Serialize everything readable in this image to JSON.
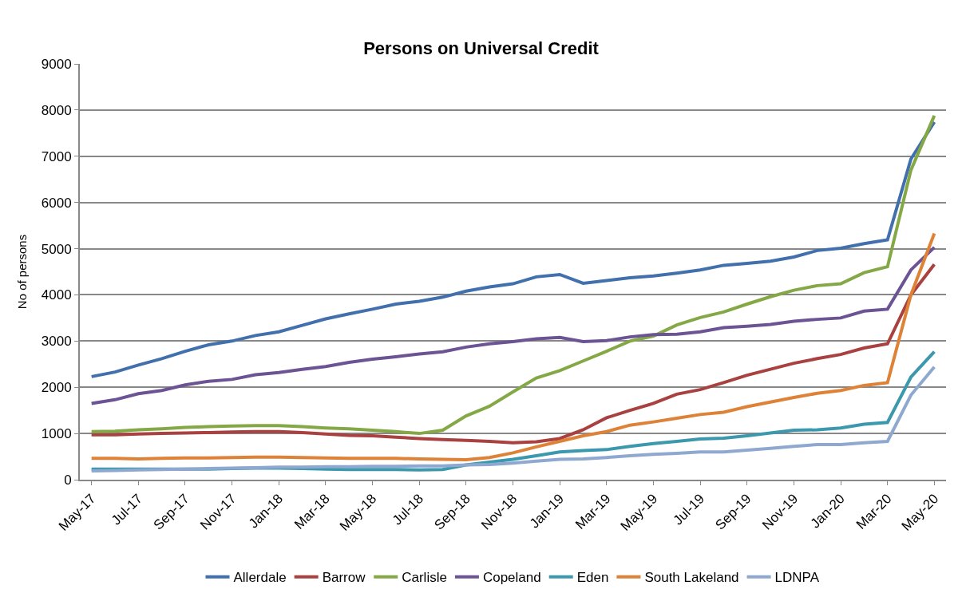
{
  "chart_data": {
    "type": "line",
    "title": "Persons on Universal Credit",
    "ylabel": "No of persons",
    "categories": [
      "May-17",
      null,
      "Jul-17",
      null,
      "Sep-17",
      null,
      "Nov-17",
      null,
      "Jan-18",
      null,
      "Mar-18",
      null,
      "May-18",
      null,
      "Jul-18",
      null,
      "Sep-18",
      null,
      "Nov-18",
      null,
      "Jan-19",
      null,
      "Mar-19",
      null,
      "May-19",
      null,
      "Jul-19",
      null,
      "Sep-19",
      null,
      "Nov-19",
      null,
      "Jan-20",
      null,
      "Mar-20",
      null,
      "May-20"
    ],
    "ylim": [
      0,
      9000
    ],
    "yticks": [
      0,
      1000,
      2000,
      3000,
      4000,
      5000,
      6000,
      7000,
      8000,
      9000
    ],
    "grid": "y",
    "legend": "bottom",
    "marker": "none",
    "line_style": "solid",
    "series": [
      {
        "name": "Allerdale",
        "color": "#4170ad",
        "values": [
          2230,
          2330,
          2480,
          2620,
          2780,
          2920,
          3000,
          3120,
          3200,
          3340,
          3480,
          3590,
          3690,
          3800,
          3860,
          3950,
          4080,
          4170,
          4240,
          4390,
          4440,
          4250,
          4310,
          4370,
          4410,
          4470,
          4540,
          4640,
          4680,
          4730,
          4820,
          4960,
          5010,
          5110,
          5190,
          6940,
          7740
        ]
      },
      {
        "name": "Barrow",
        "color": "#a8413f",
        "values": [
          970,
          970,
          990,
          1000,
          1010,
          1020,
          1030,
          1040,
          1040,
          1020,
          990,
          960,
          950,
          920,
          890,
          870,
          850,
          830,
          800,
          820,
          890,
          1080,
          1340,
          1500,
          1650,
          1850,
          1950,
          2100,
          2260,
          2390,
          2520,
          2620,
          2710,
          2850,
          2940,
          4000,
          4660
        ]
      },
      {
        "name": "Carlisle",
        "color": "#85a846",
        "values": [
          1040,
          1050,
          1080,
          1100,
          1130,
          1150,
          1160,
          1170,
          1170,
          1150,
          1120,
          1100,
          1070,
          1040,
          1000,
          1070,
          1380,
          1590,
          1900,
          2200,
          2360,
          2570,
          2780,
          3000,
          3110,
          3350,
          3510,
          3630,
          3800,
          3960,
          4100,
          4200,
          4240,
          4480,
          4610,
          6700,
          7880
        ]
      },
      {
        "name": "Copeland",
        "color": "#6b5394",
        "values": [
          1650,
          1730,
          1860,
          1930,
          2050,
          2130,
          2170,
          2270,
          2320,
          2390,
          2450,
          2540,
          2610,
          2660,
          2720,
          2770,
          2870,
          2940,
          2990,
          3050,
          3080,
          2990,
          3010,
          3090,
          3140,
          3150,
          3200,
          3290,
          3320,
          3360,
          3430,
          3470,
          3500,
          3650,
          3690,
          4540,
          5030
        ]
      },
      {
        "name": "Eden",
        "color": "#3b98ad",
        "values": [
          230,
          230,
          230,
          230,
          230,
          230,
          240,
          250,
          250,
          240,
          230,
          220,
          220,
          220,
          210,
          220,
          320,
          380,
          440,
          520,
          600,
          630,
          650,
          720,
          780,
          830,
          880,
          900,
          950,
          1010,
          1070,
          1080,
          1120,
          1200,
          1240,
          2220,
          2770
        ]
      },
      {
        "name": "South Lakeland",
        "color": "#de8238",
        "values": [
          460,
          460,
          450,
          460,
          470,
          470,
          480,
          490,
          490,
          480,
          470,
          460,
          460,
          460,
          450,
          440,
          430,
          480,
          580,
          710,
          830,
          950,
          1040,
          1180,
          1250,
          1330,
          1410,
          1460,
          1580,
          1680,
          1780,
          1870,
          1930,
          2040,
          2100,
          4000,
          5330
        ]
      },
      {
        "name": "LDNPA",
        "color": "#8ea8d0",
        "values": [
          190,
          200,
          210,
          220,
          230,
          240,
          250,
          260,
          270,
          270,
          280,
          280,
          290,
          290,
          300,
          300,
          320,
          330,
          360,
          400,
          440,
          450,
          480,
          520,
          550,
          570,
          600,
          600,
          640,
          680,
          720,
          760,
          760,
          800,
          830,
          1830,
          2440
        ]
      }
    ]
  }
}
